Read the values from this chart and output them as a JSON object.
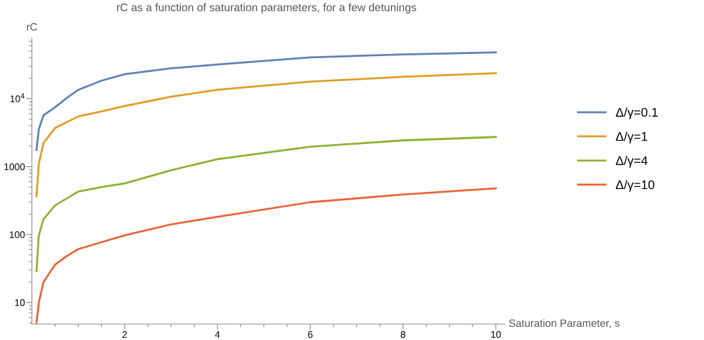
{
  "chart_data": {
    "type": "line",
    "title": "rC as a function of saturation parameters, for a few detunings",
    "xlabel": "Saturation Parameter, s",
    "ylabel": "rC",
    "x": [
      0.1,
      0.15,
      0.25,
      0.5,
      0.75,
      1,
      1.5,
      2,
      3,
      4,
      6,
      8,
      10
    ],
    "series": [
      {
        "name": "Δ/γ=0.1",
        "color": "#5e81b5",
        "values": [
          1760,
          3560,
          5690,
          7480,
          10200,
          13500,
          18400,
          22900,
          28000,
          31900,
          40600,
          44700,
          48000
        ]
      },
      {
        "name": "Δ/γ=1",
        "color": "#e19c24",
        "values": [
          367,
          1100,
          2220,
          3700,
          4500,
          5480,
          6500,
          7800,
          10700,
          13500,
          17800,
          21000,
          23700
        ]
      },
      {
        "name": "Δ/γ=4",
        "color": "#8fb032",
        "values": [
          29,
          97,
          168,
          268,
          339,
          430,
          500,
          565,
          883,
          1285,
          1960,
          2430,
          2730
        ]
      },
      {
        "name": "Δ/γ=10",
        "color": "#eb6235",
        "values": [
          5,
          10,
          20,
          36,
          48,
          61,
          77,
          97,
          141,
          182,
          299,
          388,
          478
        ]
      }
    ],
    "log": "y",
    "xlim": [
      0,
      10.2
    ],
    "ylim": [
      4.8,
      78000
    ],
    "xticks": [
      {
        "value": 0.5,
        "label": null
      },
      {
        "value": 1,
        "label": null
      },
      {
        "value": 1.5,
        "label": null
      },
      2,
      {
        "value": 2.5,
        "label": null
      },
      {
        "value": 3,
        "label": null
      },
      {
        "value": 3.5,
        "label": null
      },
      4,
      {
        "value": 4.5,
        "label": null
      },
      {
        "value": 5,
        "label": null
      },
      {
        "value": 5.5,
        "label": null
      },
      6,
      {
        "value": 6.5,
        "label": null
      },
      {
        "value": 7,
        "label": null
      },
      {
        "value": 7.5,
        "label": null
      },
      8,
      {
        "value": 8.5,
        "label": null
      },
      {
        "value": 9,
        "label": null
      },
      {
        "value": 9.5,
        "label": null
      },
      10
    ],
    "yticks": [
      {
        "value": 5,
        "label": null
      },
      {
        "value": 6,
        "label": null
      },
      {
        "value": 7,
        "label": null
      },
      {
        "value": 8,
        "label": null
      },
      {
        "value": 9,
        "label": null
      },
      10,
      {
        "value": 20,
        "label": null
      },
      {
        "value": 30,
        "label": null
      },
      {
        "value": 40,
        "label": null
      },
      {
        "value": 50,
        "label": null
      },
      {
        "value": 60,
        "label": null
      },
      {
        "value": 70,
        "label": null
      },
      {
        "value": 80,
        "label": null
      },
      {
        "value": 90,
        "label": null
      },
      100,
      {
        "value": 200,
        "label": null
      },
      {
        "value": 300,
        "label": null
      },
      {
        "value": 400,
        "label": null
      },
      {
        "value": 500,
        "label": null
      },
      {
        "value": 600,
        "label": null
      },
      {
        "value": 700,
        "label": null
      },
      {
        "value": 800,
        "label": null
      },
      {
        "value": 900,
        "label": null
      },
      1000,
      {
        "value": 2000,
        "label": null
      },
      {
        "value": 3000,
        "label": null
      },
      {
        "value": 4000,
        "label": null
      },
      {
        "value": 5000,
        "label": null
      },
      {
        "value": 6000,
        "label": null
      },
      {
        "value": 7000,
        "label": null
      },
      {
        "value": 8000,
        "label": null
      },
      {
        "value": 9000,
        "label": null
      },
      {
        "value": 10000,
        "label": "10$^{4}$"
      },
      {
        "value": 20000,
        "label": null
      },
      {
        "value": 30000,
        "label": null
      },
      {
        "value": 40000,
        "label": null
      },
      {
        "value": 50000,
        "label": null
      },
      {
        "value": 60000,
        "label": null
      },
      {
        "value": 70000,
        "label": null
      }
    ],
    "grid": false,
    "legend": "right",
    "marker": "none",
    "line_style": "solid"
  }
}
